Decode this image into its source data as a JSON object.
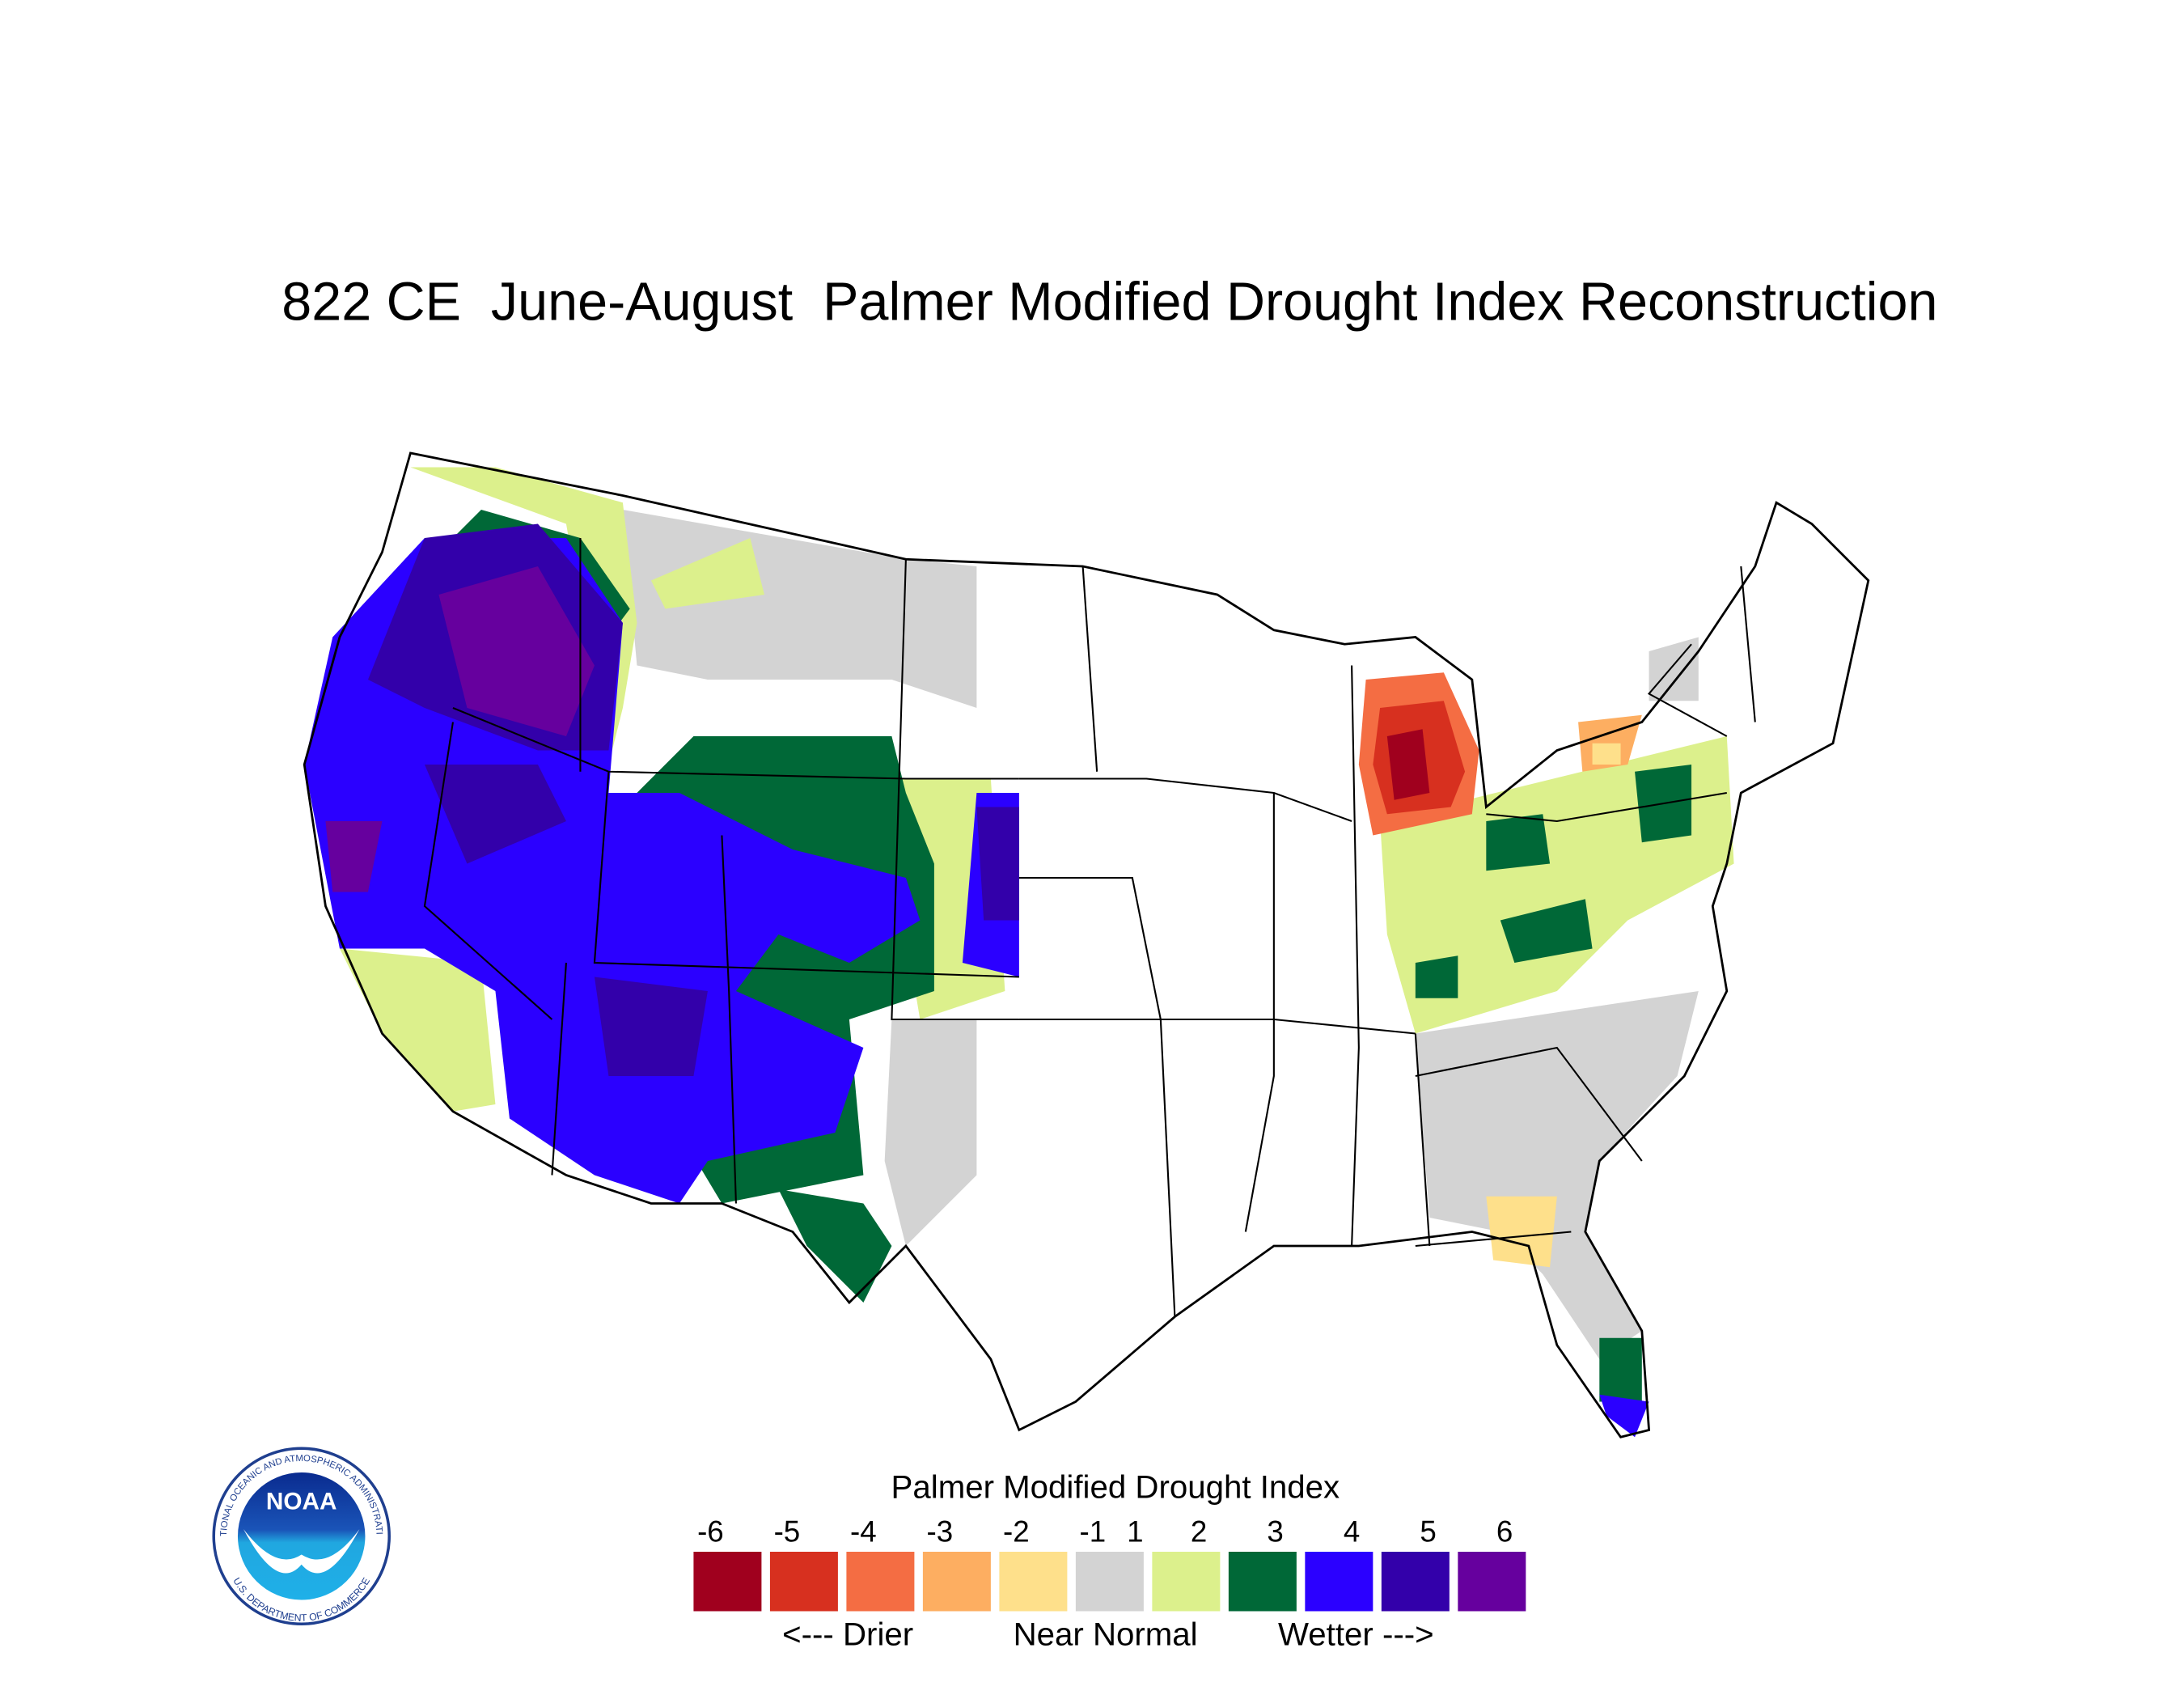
{
  "title": "822 CE  June-August  Palmer Modified Drought Index Reconstruction",
  "legend": {
    "title": "Palmer Modified Drought Index",
    "labels": [
      -6,
      -5,
      -4,
      -3,
      -2,
      -1,
      1,
      2,
      3,
      4,
      5,
      6
    ],
    "colors": [
      "#a0001e",
      "#d7301f",
      "#f46d43",
      "#fdae61",
      "#fee08b",
      "#d3d3d3",
      "#dcf08c",
      "#006837",
      "#2b00ff",
      "#3300aa",
      "#66009e"
    ],
    "captions": [
      "<--- Drier",
      "Near Normal",
      "Wetter --->"
    ]
  },
  "logo": {
    "name": "NOAA",
    "ring_top": "NATIONAL OCEANIC AND ATMOSPHERIC ADMINISTRATION",
    "ring_bottom": "U.S. DEPARTMENT OF COMMERCE"
  }
}
